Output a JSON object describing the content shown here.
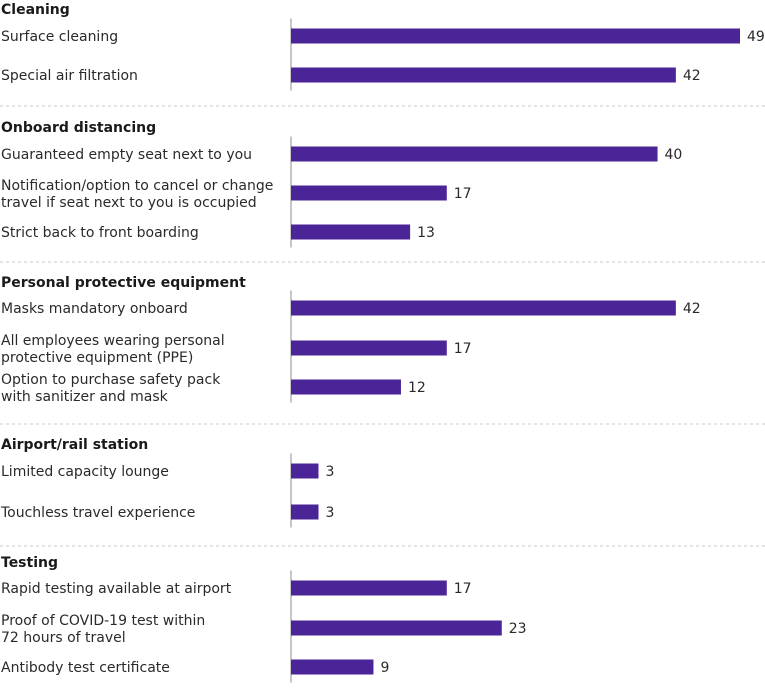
{
  "chart_data": {
    "type": "bar",
    "orientation": "horizontal",
    "title": "",
    "xlabel": "",
    "ylabel": "",
    "xlim": [
      0,
      49
    ],
    "grid": false,
    "legend": "none",
    "bar_color": "#4b2497",
    "groups": [
      {
        "title": "Cleaning",
        "items": [
          {
            "label": [
              "Surface cleaning"
            ],
            "value": 49
          },
          {
            "label": [
              "Special air filtration"
            ],
            "value": 42
          }
        ]
      },
      {
        "title": "Onboard distancing",
        "items": [
          {
            "label": [
              "Guaranteed empty seat next to you"
            ],
            "value": 40
          },
          {
            "label": [
              "Notification/option to cancel or change",
              "travel if seat next to you is occupied"
            ],
            "value": 17
          },
          {
            "label": [
              "Strict back to front boarding"
            ],
            "value": 13
          }
        ]
      },
      {
        "title": "Personal protective equipment",
        "items": [
          {
            "label": [
              "Masks mandatory onboard"
            ],
            "value": 42
          },
          {
            "label": [
              "All employees wearing personal",
              "protective equipment (PPE)"
            ],
            "value": 17
          },
          {
            "label": [
              "Option to purchase safety pack",
              "with sanitizer and mask"
            ],
            "value": 12
          }
        ]
      },
      {
        "title": "Airport/rail station",
        "items": [
          {
            "label": [
              "Limited capacity lounge"
            ],
            "value": 3
          },
          {
            "label": [
              "Touchless travel experience"
            ],
            "value": 3
          }
        ]
      },
      {
        "title": "Testing",
        "items": [
          {
            "label": [
              "Rapid testing available at airport"
            ],
            "value": 17
          },
          {
            "label": [
              "Proof of COVID-19 test within",
              "72 hours of travel"
            ],
            "value": 23
          },
          {
            "label": [
              "Antibody test certificate"
            ],
            "value": 9
          }
        ]
      }
    ]
  }
}
